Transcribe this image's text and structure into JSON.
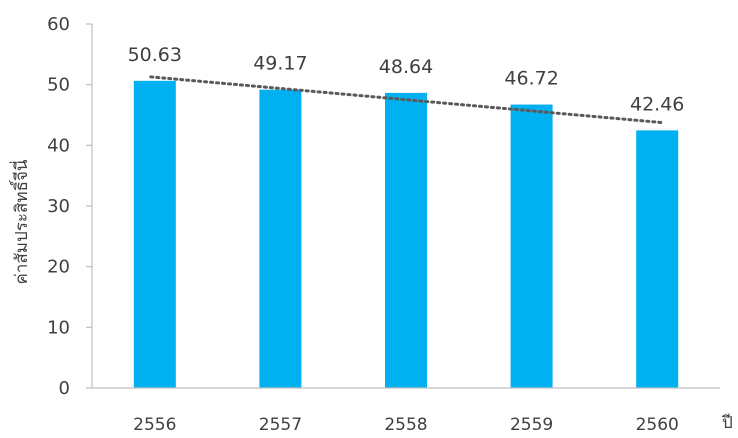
{
  "chart_data": {
    "type": "bar",
    "title": "",
    "xlabel": "ปี",
    "ylabel": "ค่าสัมประสิทธิ์จีนี่",
    "categories": [
      "2556",
      "2557",
      "2558",
      "2559",
      "2560"
    ],
    "values": [
      50.63,
      49.17,
      48.64,
      46.72,
      42.46
    ],
    "data_labels": [
      "50.63",
      "49.17",
      "48.64",
      "46.72",
      "42.46"
    ],
    "ylim": [
      0,
      60
    ],
    "yticks": [
      0,
      10,
      20,
      30,
      40,
      50,
      60
    ],
    "grid": false,
    "legend": "none",
    "trendline": {
      "type": "linear",
      "style": "dotted"
    },
    "colors": {
      "bar": "#00B0F0",
      "trend": "#595959",
      "axis": "#BFBFBF"
    }
  }
}
